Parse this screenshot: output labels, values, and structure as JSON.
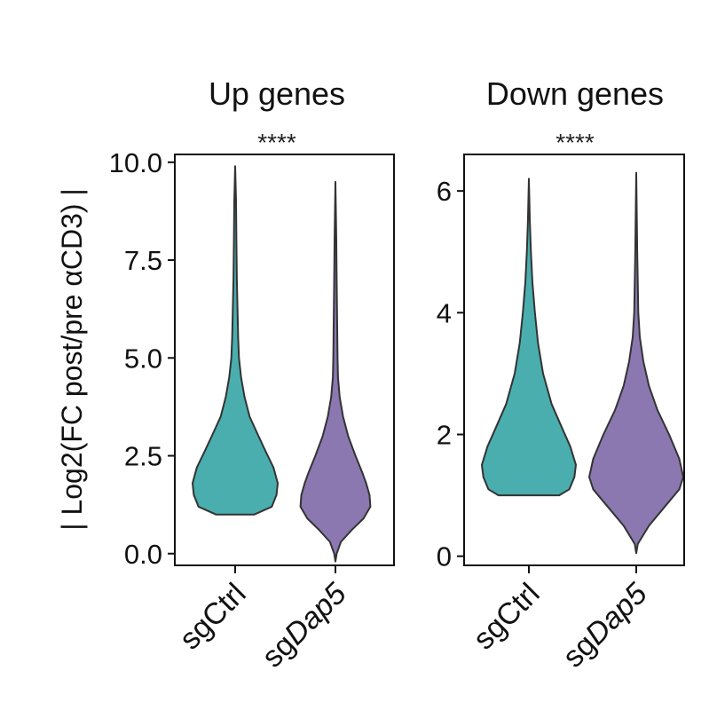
{
  "y_axis_label": "| Log2(FC post/pre αCD3) |",
  "chart_data": [
    {
      "type": "violin",
      "title": "Up genes",
      "significance": "****",
      "ylabel": "| Log2(FC post/pre αCD3) |",
      "ylim": [
        -0.3,
        10.2
      ],
      "yticks": [
        "0.0",
        "2.5",
        "5.0",
        "7.5",
        "10.0"
      ],
      "categories": [
        {
          "prefix": "sg",
          "name": "Ctrl",
          "italic": false
        },
        {
          "prefix": "sg",
          "name": "Dap5",
          "italic": true
        }
      ],
      "series": [
        {
          "color": "#4aaeae",
          "min": 1.0,
          "max": 9.9,
          "profile": [
            [
              1.0,
              0.45
            ],
            [
              1.2,
              0.86
            ],
            [
              1.5,
              0.97
            ],
            [
              1.8,
              1.0
            ],
            [
              2.2,
              0.9
            ],
            [
              2.6,
              0.72
            ],
            [
              3.0,
              0.55
            ],
            [
              3.5,
              0.34
            ],
            [
              4.0,
              0.22
            ],
            [
              4.5,
              0.14
            ],
            [
              5.0,
              0.09
            ],
            [
              5.5,
              0.07
            ],
            [
              6.0,
              0.06
            ],
            [
              7.0,
              0.04
            ],
            [
              8.0,
              0.03
            ],
            [
              9.0,
              0.02
            ],
            [
              9.9,
              0.0
            ]
          ]
        },
        {
          "color": "#8b78b0",
          "min": -0.2,
          "max": 9.5,
          "profile": [
            [
              -0.2,
              0.0
            ],
            [
              0.0,
              0.03
            ],
            [
              0.3,
              0.13
            ],
            [
              0.6,
              0.38
            ],
            [
              0.9,
              0.66
            ],
            [
              1.2,
              0.82
            ],
            [
              1.5,
              0.8
            ],
            [
              1.8,
              0.72
            ],
            [
              2.1,
              0.62
            ],
            [
              2.5,
              0.47
            ],
            [
              3.0,
              0.3
            ],
            [
              3.5,
              0.18
            ],
            [
              4.0,
              0.1
            ],
            [
              4.5,
              0.06
            ],
            [
              5.0,
              0.05
            ],
            [
              6.0,
              0.04
            ],
            [
              7.0,
              0.03
            ],
            [
              8.0,
              0.02
            ],
            [
              9.5,
              0.0
            ]
          ]
        }
      ]
    },
    {
      "type": "violin",
      "title": "Down genes",
      "significance": "****",
      "ylabel": "",
      "ylim": [
        -0.15,
        6.6
      ],
      "yticks": [
        "0",
        "2",
        "4",
        "6"
      ],
      "categories": [
        {
          "prefix": "sg",
          "name": "Ctrl",
          "italic": false
        },
        {
          "prefix": "sg",
          "name": "Dap5",
          "italic": true
        }
      ],
      "series": [
        {
          "color": "#4aaeae",
          "min": 1.0,
          "max": 6.2,
          "profile": [
            [
              1.0,
              0.6
            ],
            [
              1.1,
              0.8
            ],
            [
              1.3,
              0.9
            ],
            [
              1.5,
              0.93
            ],
            [
              1.8,
              0.82
            ],
            [
              2.1,
              0.66
            ],
            [
              2.5,
              0.45
            ],
            [
              3.0,
              0.28
            ],
            [
              3.5,
              0.18
            ],
            [
              4.0,
              0.12
            ],
            [
              4.5,
              0.07
            ],
            [
              5.0,
              0.04
            ],
            [
              5.5,
              0.02
            ],
            [
              6.2,
              0.0
            ]
          ]
        },
        {
          "color": "#8b78b0",
          "min": 0.05,
          "max": 6.3,
          "profile": [
            [
              0.05,
              0.0
            ],
            [
              0.2,
              0.03
            ],
            [
              0.5,
              0.25
            ],
            [
              0.8,
              0.55
            ],
            [
              1.1,
              0.85
            ],
            [
              1.3,
              0.93
            ],
            [
              1.6,
              0.85
            ],
            [
              2.0,
              0.65
            ],
            [
              2.4,
              0.42
            ],
            [
              2.8,
              0.25
            ],
            [
              3.2,
              0.14
            ],
            [
              3.6,
              0.07
            ],
            [
              4.0,
              0.04
            ],
            [
              4.5,
              0.03
            ],
            [
              5.0,
              0.02
            ],
            [
              6.3,
              0.0
            ]
          ]
        }
      ]
    }
  ]
}
